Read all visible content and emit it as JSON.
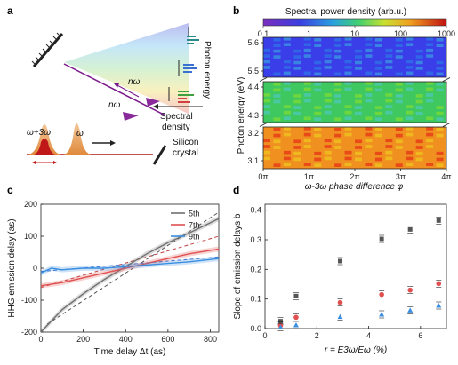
{
  "panels": {
    "a": {
      "label": "a",
      "right_labels": [
        "Photon energy",
        "Spectral density"
      ],
      "omega_labels": {
        "nw1": "nω",
        "nw2": "nω",
        "w3": "ω+3ω",
        "w": "ω"
      },
      "crystal_label": [
        "Silicon",
        "crystal"
      ]
    },
    "b": {
      "label": "b",
      "colorbar_title": "Spectral power density (arb.u.)",
      "colorbar_ticks": [
        "0.1",
        "1",
        "10",
        "100",
        "1000"
      ],
      "ylabel": "Photon energy (eV)",
      "xlabel": "ω-3ω phase difference φ",
      "xticks": [
        "0π",
        "1π",
        "2π",
        "3π",
        "4π"
      ],
      "yticks_top": [
        "5.6",
        "5.5"
      ],
      "yticks_mid": [
        "4.4",
        "4.3"
      ],
      "yticks_bot": [
        "3.2",
        "3.1"
      ]
    },
    "c": {
      "label": "c"
    },
    "d": {
      "label": "d"
    }
  },
  "chart_data": [
    {
      "panel": "c",
      "type": "line",
      "xlabel": "Time delay Δt (as)",
      "ylabel": "HHG emission delay (as)",
      "xlim": [
        0,
        840
      ],
      "ylim": [
        -200,
        200
      ],
      "xticks": [
        0,
        200,
        400,
        600,
        800
      ],
      "yticks": [
        -200,
        -100,
        0,
        100,
        200
      ],
      "legend_position": "top-right",
      "series": [
        {
          "name": "5th",
          "color": "#707070",
          "x": [
            0,
            50,
            100,
            200,
            300,
            400,
            500,
            600,
            700,
            840
          ],
          "y": [
            -200,
            -165,
            -130,
            -80,
            -35,
            5,
            45,
            80,
            110,
            155
          ]
        },
        {
          "name": "7th",
          "color": "#e05050",
          "x": [
            0,
            100,
            200,
            300,
            400,
            500,
            600,
            700,
            840
          ],
          "y": [
            -55,
            -45,
            -30,
            -15,
            0,
            15,
            30,
            45,
            60
          ]
        },
        {
          "name": "9th",
          "color": "#3a8ee0",
          "x": [
            0,
            50,
            100,
            200,
            300,
            400,
            500,
            600,
            700,
            840
          ],
          "y": [
            -15,
            0,
            -5,
            0,
            0,
            5,
            10,
            15,
            20,
            30
          ]
        }
      ],
      "fits": [
        {
          "color": "#555555",
          "x": [
            30,
            840
          ],
          "y": [
            -175,
            175
          ]
        },
        {
          "color": "#c04040",
          "x": [
            0,
            840
          ],
          "y": [
            -60,
            100
          ]
        },
        {
          "color": "#3a6ed0",
          "x": [
            0,
            840
          ],
          "y": [
            -10,
            35
          ]
        }
      ]
    },
    {
      "panel": "d",
      "type": "scatter",
      "xlabel": "r = E3ω/Eω (%)",
      "ylabel": "Slope of emission delays b",
      "xlim": [
        0,
        7
      ],
      "ylim": [
        0,
        0.42
      ],
      "xticks": [
        0,
        2,
        4,
        6
      ],
      "yticks": [
        0.0,
        0.1,
        0.2,
        0.3,
        0.4
      ],
      "series": [
        {
          "color": "#555555",
          "marker": "square",
          "x": [
            0.6,
            1.2,
            2.9,
            4.5,
            5.6,
            6.7
          ],
          "y": [
            0.025,
            0.11,
            0.228,
            0.303,
            0.335,
            0.365
          ]
        },
        {
          "color": "#e05050",
          "marker": "circle",
          "x": [
            0.6,
            1.2,
            2.9,
            4.5,
            5.6,
            6.7
          ],
          "y": [
            0.01,
            0.038,
            0.088,
            0.115,
            0.13,
            0.152
          ]
        },
        {
          "color": "#3a8ee0",
          "marker": "triangle",
          "x": [
            0.6,
            1.2,
            2.9,
            4.5,
            5.6,
            6.7
          ],
          "y": [
            0.005,
            0.012,
            0.04,
            0.048,
            0.062,
            0.078
          ]
        }
      ]
    }
  ]
}
